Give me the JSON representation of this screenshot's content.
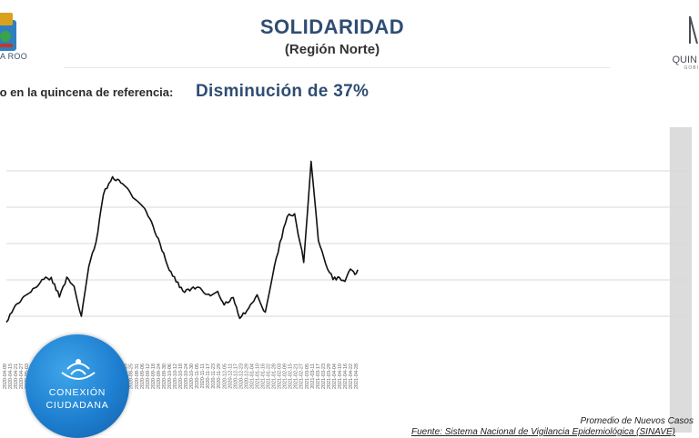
{
  "header": {
    "title": "SOLIDARIDAD",
    "subtitle": "(Región Norte)",
    "ref_label": "io en la quincena de referencia:",
    "ref_value": "Disminución de 37%"
  },
  "logos": {
    "left_text": "A ROO",
    "right_text": "QUIN",
    "right_sub": "GOBI"
  },
  "badge": {
    "line1": "CONEXIÓN",
    "line2": "CIUDADANA"
  },
  "footer": {
    "series_note": "Promedio de Nuevos Casos",
    "source": "Fuente: Sistema Nacional de Vigilancia Epidemiológica (SINAVE)"
  },
  "colors": {
    "title": "#2f4d72",
    "line": "#111111",
    "gridline": "#d9d9d9",
    "shade": "#d6d6d6",
    "badge": "#1e7fd0"
  },
  "chart_data": {
    "type": "line",
    "x_label_format": "date",
    "x_range": [
      "2020-04-09",
      "2022-04-28"
    ],
    "ylim": [
      0,
      100
    ],
    "y_tick_labels_visible": false,
    "gridlines": 5,
    "shaded_period": [
      "2022-04-04",
      "2022-04-28"
    ],
    "x_ticks": [
      "2020-04-09",
      "2020-04-15",
      "2020-04-21",
      "2020-04-27",
      "2020-05-03",
      "2020-05-09",
      "2020-05-15",
      "2020-05-21",
      "2020-05-27",
      "2020-06-02",
      "2020-06-08",
      "2020-06-14",
      "2020-06-20",
      "2020-06-26",
      "2020-07-02",
      "2020-07-08",
      "2020-07-14",
      "2020-07-20",
      "2020-07-26",
      "2020-08-01",
      "2020-08-07",
      "2020-08-13",
      "2020-08-19",
      "2020-08-25",
      "2020-08-31",
      "2020-09-06",
      "2020-09-12",
      "2020-09-18",
      "2020-09-24",
      "2020-09-30",
      "2020-10-06",
      "2020-10-12",
      "2020-10-18",
      "2020-10-24",
      "2020-10-30",
      "2020-11-05",
      "2020-11-11",
      "2020-11-17",
      "2020-11-23",
      "2020-11-29",
      "2020-12-05",
      "2020-12-11",
      "2020-12-17",
      "2020-12-23",
      "2020-12-29",
      "2021-01-04",
      "2021-01-10",
      "2021-01-16",
      "2021-01-22",
      "2021-01-28",
      "2021-02-03",
      "2021-02-09",
      "2021-02-15",
      "2021-02-21",
      "2021-02-27",
      "2021-03-05",
      "2021-03-11",
      "2021-03-17",
      "2021-03-23",
      "2021-03-29",
      "2021-04-04",
      "2021-04-10",
      "2021-04-16",
      "2021-04-22",
      "2021-04-28"
    ],
    "series": [
      {
        "x": [
          "2020-04-09",
          "2020-04-17",
          "2020-04-28",
          "2020-05-08",
          "2020-05-20",
          "2020-05-28",
          "2020-06-06",
          "2020-06-14",
          "2020-06-22",
          "2020-06-30",
          "2020-07-08",
          "2020-07-16",
          "2020-07-24",
          "2020-08-03",
          "2020-08-14",
          "2020-08-27",
          "2020-09-09",
          "2020-09-22",
          "2020-10-04",
          "2020-10-19",
          "2020-11-03",
          "2020-11-18",
          "2020-11-26",
          "2020-12-03",
          "2020-12-13",
          "2020-12-20",
          "2020-12-30",
          "2021-01-08",
          "2021-01-17",
          "2021-01-25",
          "2021-02-02",
          "2021-02-10",
          "2021-02-18",
          "2021-02-28",
          "2021-03-08",
          "2021-03-16",
          "2021-03-24",
          "2021-04-01",
          "2021-04-08",
          "2021-04-14",
          "2021-04-20",
          "2021-04-25",
          "2021-04-28"
        ],
        "y": [
          14,
          20,
          26,
          29,
          34,
          34,
          26,
          34,
          31,
          16,
          40,
          50,
          73,
          80,
          78,
          70,
          65,
          52,
          38,
          28,
          30,
          26,
          28,
          22,
          25,
          16,
          20,
          27,
          18,
          36,
          50,
          63,
          63,
          42,
          87,
          52,
          40,
          34,
          34,
          33,
          38,
          36,
          38
        ]
      }
    ]
  }
}
